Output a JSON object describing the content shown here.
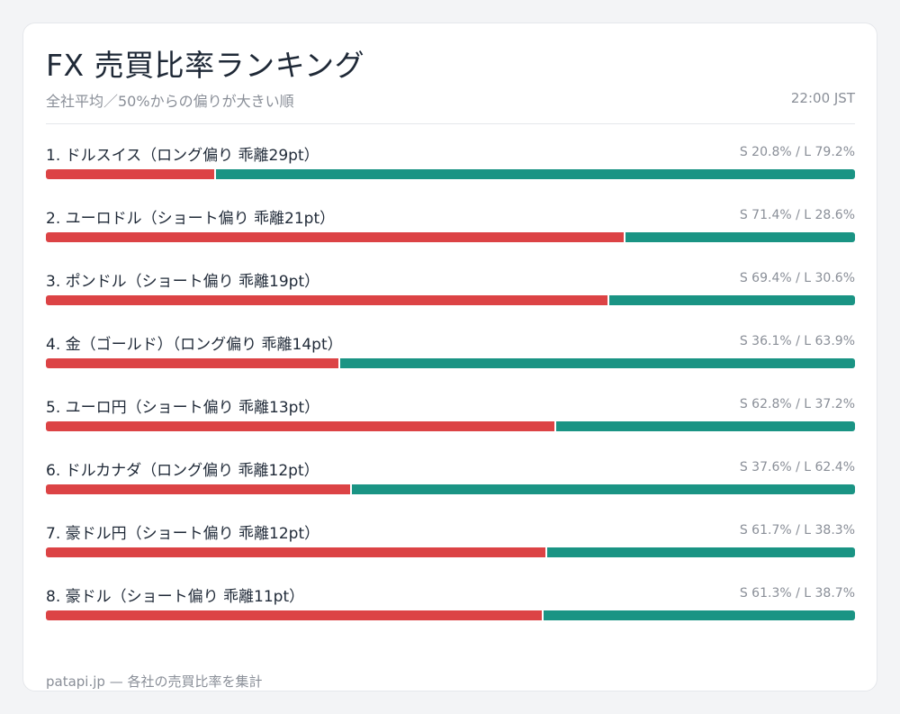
{
  "header": {
    "title": "FX 売買比率ランキング",
    "subtitle": "全社平均／50%からの偏りが大きい順",
    "time": "22:00 JST"
  },
  "footer": {
    "text": "patapi.jp — 各社の売買比率を集計"
  },
  "colors": {
    "short": "#dc4345",
    "long": "#1a9484"
  },
  "chart_data": {
    "type": "bar",
    "orientation": "horizontal-stacked",
    "categories": [
      "1. ドルスイス（ロング偏り 乖離29pt）",
      "2. ユーロドル（ショート偏り 乖離21pt）",
      "3. ポンドル（ショート偏り 乖離19pt）",
      "4. 金（ゴールド）（ロング偏り 乖離14pt）",
      "5. ユーロ円（ショート偏り 乖離13pt）",
      "6. ドルカナダ（ロング偏り 乖離12pt）",
      "7. 豪ドル円（ショート偏り 乖離12pt）",
      "8. 豪ドル（ショート偏り 乖離11pt）"
    ],
    "series": [
      {
        "name": "S",
        "values": [
          20.8,
          71.4,
          69.4,
          36.1,
          62.8,
          37.6,
          61.7,
          61.3
        ]
      },
      {
        "name": "L",
        "values": [
          79.2,
          28.6,
          30.6,
          63.9,
          37.2,
          62.4,
          38.3,
          38.7
        ]
      }
    ],
    "value_labels": [
      "S 20.8% / L 79.2%",
      "S 71.4% / L 28.6%",
      "S 69.4% / L 30.6%",
      "S 36.1% / L 63.9%",
      "S 62.8% / L 37.2%",
      "S 37.6% / L 62.4%",
      "S 61.7% / L 38.3%",
      "S 61.3% / L 38.7%"
    ],
    "xlim": [
      0,
      100
    ],
    "title": "FX 売買比率ランキング",
    "grid": false
  }
}
